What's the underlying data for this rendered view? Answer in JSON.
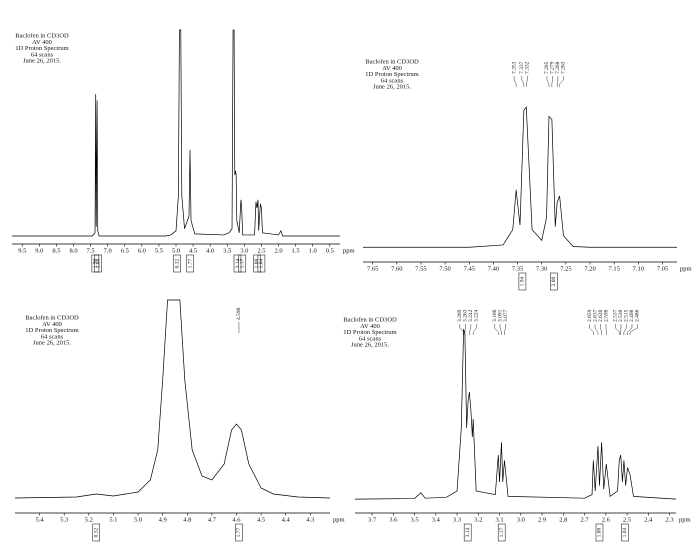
{
  "chart_data": [
    {
      "type": "line",
      "annotation": [
        "Baclofen in CD3OD",
        "AV 400",
        "1D Proton Spectrum",
        "64 scans",
        "June 26, 2015."
      ],
      "xlabel": "ppm",
      "color": "#000000",
      "xlim": [
        9.8,
        0.2
      ],
      "ylim": [
        0,
        100
      ],
      "xticks": [
        9.5,
        {
          "value": 9,
          "label": "9.0"
        },
        8.5,
        {
          "value": 8,
          "label": "8.0"
        },
        7.5,
        {
          "value": 7,
          "label": "7.0"
        },
        6.5,
        {
          "value": 6,
          "label": "6.0"
        },
        5.5,
        {
          "value": 5,
          "label": "5.0"
        },
        4.5,
        {
          "value": 4,
          "label": "4.0"
        },
        3.5,
        {
          "value": 3,
          "label": "3.0"
        },
        2.5,
        {
          "value": 2,
          "label": "2.0"
        },
        1.5,
        {
          "value": 1,
          "label": "1.0"
        },
        0.5
      ],
      "x": [
        9.8,
        7.45,
        7.37,
        7.35,
        7.335,
        7.31,
        7.29,
        7.25,
        5.3,
        5.15,
        5.0,
        4.93,
        4.9,
        4.86,
        4.83,
        4.75,
        4.62,
        4.59,
        4.56,
        4.45,
        3.6,
        3.45,
        3.36,
        3.33,
        3.3,
        3.28,
        3.26,
        3.24,
        3.22,
        3.15,
        3.1,
        3.08,
        3.05,
        2.7,
        2.66,
        2.63,
        2.6,
        2.58,
        2.53,
        2.5,
        2.47,
        2.0,
        1.93,
        1.88,
        0.2
      ],
      "values": [
        0.5,
        0.5,
        2,
        69,
        5,
        66,
        3,
        0.5,
        0.5,
        1,
        3,
        20,
        100,
        100,
        20,
        4,
        10,
        42,
        8,
        1.5,
        1,
        2,
        4,
        100,
        100,
        30,
        32,
        30,
        8,
        2,
        18,
        15,
        1,
        1,
        17,
        14,
        18,
        3,
        16,
        14,
        2,
        1,
        3,
        0.5,
        0.5
      ],
      "integrals": [
        {
          "x": 7.36,
          "label": "1.96"
        },
        {
          "x": 7.28,
          "label": "2.00"
        },
        {
          "x": 4.97,
          "label": "0.32"
        },
        {
          "x": 4.59,
          "label": "1.77"
        },
        {
          "x": 3.2,
          "label": "3.14"
        },
        {
          "x": 3.06,
          "label": "1.17"
        },
        {
          "x": 2.63,
          "label": "1.00"
        },
        {
          "x": 2.5,
          "label": "1.04"
        }
      ]
    },
    {
      "type": "line",
      "annotation": [
        "Baclofen in CD3OD",
        "AV 400",
        "1D Proton Spectrum",
        "64 scans",
        "June 26, 2015."
      ],
      "xlabel": "ppm",
      "color": "#000000",
      "xlim": [
        7.67,
        7.02
      ],
      "ylim": [
        0,
        100
      ],
      "xticks": [
        7.65,
        {
          "value": 7.6,
          "label": "7.60"
        },
        7.55,
        {
          "value": 7.5,
          "label": "7.50"
        },
        7.45,
        {
          "value": 7.4,
          "label": "7.40"
        },
        7.35,
        {
          "value": 7.3,
          "label": "7.30"
        },
        7.25,
        {
          "value": 7.2,
          "label": "7.20"
        },
        7.15,
        {
          "value": 7.1,
          "label": "7.10"
        },
        7.05
      ],
      "x": [
        7.67,
        7.45,
        7.38,
        7.36,
        7.353,
        7.345,
        7.337,
        7.332,
        7.32,
        7.3,
        7.29,
        7.285,
        7.279,
        7.272,
        7.268,
        7.263,
        7.255,
        7.235,
        7.2,
        7.02
      ],
      "values": [
        0.5,
        0.5,
        2,
        12,
        38,
        15,
        90,
        92,
        12,
        5,
        20,
        86,
        84,
        14,
        30,
        34,
        8,
        1,
        0.5,
        0.5
      ],
      "peak_labels": [
        "7.353",
        "7.337",
        "7.332",
        "7.285",
        "7.279",
        "7.268",
        "7.263"
      ],
      "integrals": [
        {
          "x": 7.34,
          "label": "1.94"
        },
        {
          "x": 7.275,
          "label": "2.00"
        }
      ]
    },
    {
      "type": "line",
      "annotation": [
        "Baclofen in CD3OD",
        "AV 400",
        "1D Proton Spectrum",
        "64 scans",
        "June 26, 2015."
      ],
      "xlabel": "ppm",
      "color": "#000000",
      "xlim": [
        5.5,
        4.22
      ],
      "ylim": [
        0,
        100
      ],
      "xticks": [
        5.4,
        5.3,
        5.2,
        5.1,
        {
          "value": 5,
          "label": "5.0"
        },
        4.9,
        4.8,
        4.7,
        4.6,
        4.5,
        4.4,
        4.3
      ],
      "x": [
        5.5,
        5.25,
        5.17,
        5.1,
        5.0,
        4.95,
        4.92,
        4.9,
        4.88,
        4.83,
        4.81,
        4.78,
        4.74,
        4.7,
        4.65,
        4.62,
        4.6,
        4.58,
        4.55,
        4.5,
        4.45,
        4.35,
        4.22
      ],
      "values": [
        1,
        1.5,
        3,
        2,
        4,
        10,
        25,
        60,
        100,
        100,
        60,
        25,
        12,
        10,
        18,
        35,
        38,
        35,
        18,
        6,
        3,
        1.5,
        1
      ],
      "peak_labels": [
        "4.590"
      ],
      "integrals": [
        {
          "x": 5.17,
          "label": "0.32"
        },
        {
          "x": 4.59,
          "label": "1.77"
        }
      ]
    },
    {
      "type": "line",
      "annotation": [
        "Baclofen in CD3OD",
        "AV 400",
        "1D Proton Spectrum",
        "64 scans",
        "June 26, 2015."
      ],
      "xlabel": "ppm",
      "color": "#000000",
      "xlim": [
        3.78,
        2.27
      ],
      "ylim": [
        0,
        100
      ],
      "xticks": [
        3.7,
        3.6,
        3.5,
        3.4,
        3.3,
        3.2,
        3.1,
        {
          "value": 3,
          "label": "3.0"
        },
        2.9,
        2.8,
        2.7,
        2.6,
        2.5,
        2.4,
        2.3
      ],
      "x": [
        3.78,
        3.5,
        3.47,
        3.45,
        3.35,
        3.3,
        3.28,
        3.269,
        3.263,
        3.255,
        3.248,
        3.242,
        3.235,
        3.228,
        3.224,
        3.21,
        3.12,
        3.106,
        3.1,
        3.091,
        3.085,
        3.077,
        3.06,
        2.7,
        2.665,
        2.659,
        2.65,
        2.637,
        2.63,
        2.62,
        2.61,
        2.598,
        2.58,
        2.545,
        2.537,
        2.53,
        2.522,
        2.515,
        2.507,
        2.498,
        2.486,
        2.47,
        2.27
      ],
      "values": [
        0.5,
        0.8,
        4,
        1,
        1.5,
        5,
        40,
        95,
        92,
        40,
        55,
        60,
        50,
        35,
        45,
        5,
        3,
        25,
        10,
        32,
        10,
        22,
        2,
        1,
        3,
        22,
        5,
        30,
        8,
        32,
        6,
        20,
        2,
        5,
        22,
        25,
        10,
        22,
        8,
        18,
        14,
        2,
        0.5
      ],
      "peak_labels": [
        "3.269",
        "3.263",
        "3.242",
        "3.224",
        "3.106",
        "3.091",
        "3.077",
        "2.659",
        "2.637",
        "2.620",
        "2.598",
        "2.537",
        "2.530",
        "2.515",
        "2.498",
        "2.486"
      ],
      "integrals": [
        {
          "x": 3.25,
          "label": "3.14"
        },
        {
          "x": 3.09,
          "label": "1.17"
        },
        {
          "x": 2.63,
          "label": "1.00"
        },
        {
          "x": 2.51,
          "label": "1.04"
        }
      ]
    }
  ]
}
